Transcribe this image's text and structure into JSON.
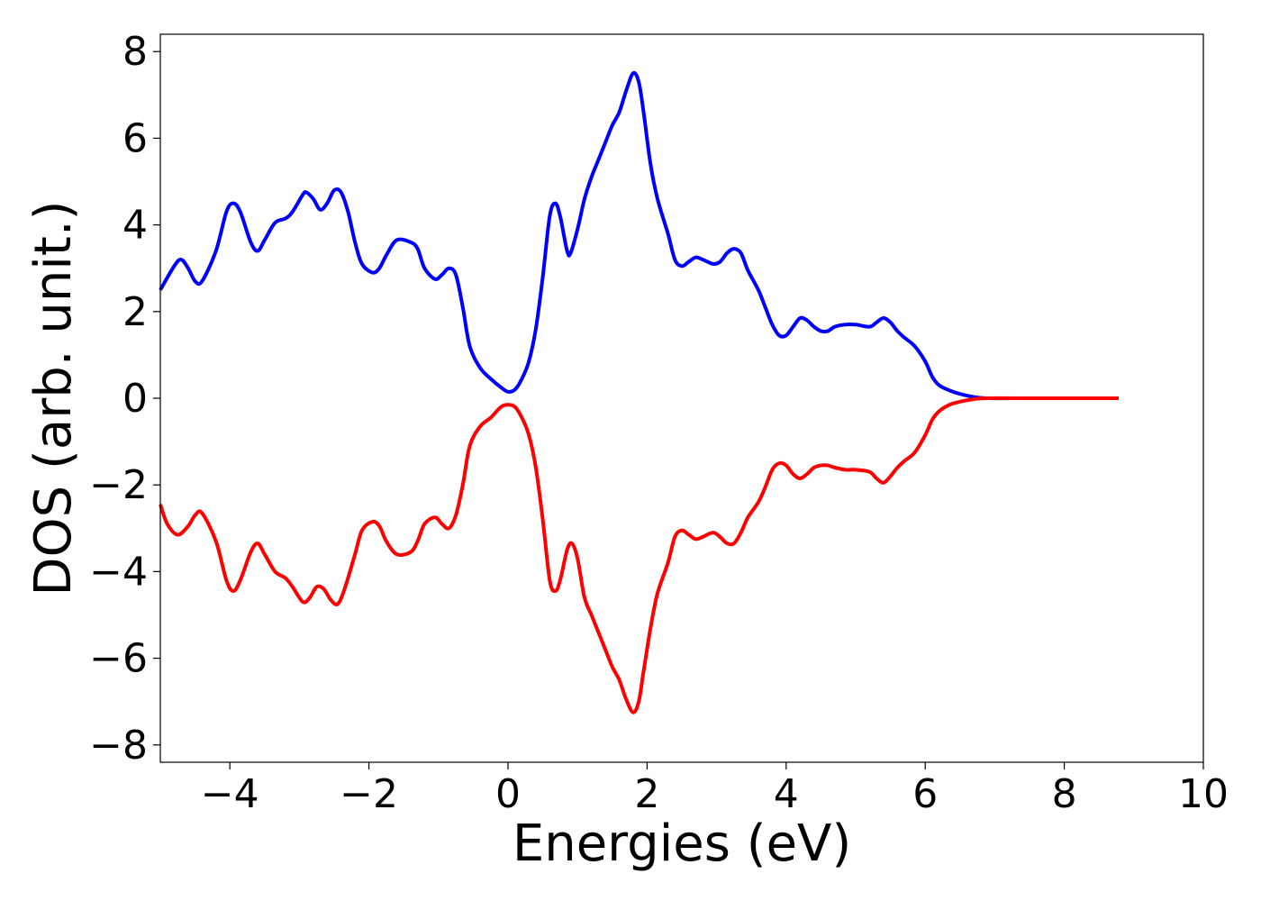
{
  "chart_data": {
    "type": "line",
    "title": "",
    "xlabel": "Energies (eV)",
    "ylabel": "DOS (arb. unit.)",
    "xlim": [
      -5,
      10
    ],
    "ylim": [
      -8.4,
      8.4
    ],
    "x_ticks": [
      -4,
      -2,
      0,
      2,
      4,
      6,
      8,
      10
    ],
    "y_ticks": [
      -8,
      -6,
      -4,
      -2,
      0,
      2,
      4,
      6,
      8
    ],
    "x_tick_labels": [
      "−4",
      "−2",
      "0",
      "2",
      "4",
      "6",
      "8",
      "10"
    ],
    "y_tick_labels": [
      "−8",
      "−6",
      "−4",
      "−2",
      "0",
      "2",
      "4",
      "6",
      "8"
    ],
    "grid": false,
    "legend": "none",
    "series": [
      {
        "color": "#0000ff",
        "points": [
          [
            -5.0,
            2.5
          ],
          [
            -4.8,
            3.05
          ],
          [
            -4.7,
            3.2
          ],
          [
            -4.6,
            3.0
          ],
          [
            -4.5,
            2.7
          ],
          [
            -4.4,
            2.7
          ],
          [
            -4.2,
            3.4
          ],
          [
            -4.05,
            4.3
          ],
          [
            -3.95,
            4.5
          ],
          [
            -3.85,
            4.3
          ],
          [
            -3.7,
            3.6
          ],
          [
            -3.6,
            3.4
          ],
          [
            -3.5,
            3.65
          ],
          [
            -3.35,
            4.05
          ],
          [
            -3.2,
            4.15
          ],
          [
            -3.1,
            4.3
          ],
          [
            -2.95,
            4.7
          ],
          [
            -2.9,
            4.75
          ],
          [
            -2.8,
            4.6
          ],
          [
            -2.7,
            4.35
          ],
          [
            -2.6,
            4.5
          ],
          [
            -2.5,
            4.8
          ],
          [
            -2.4,
            4.75
          ],
          [
            -2.3,
            4.3
          ],
          [
            -2.2,
            3.6
          ],
          [
            -2.1,
            3.1
          ],
          [
            -1.95,
            2.9
          ],
          [
            -1.85,
            3.0
          ],
          [
            -1.75,
            3.3
          ],
          [
            -1.6,
            3.65
          ],
          [
            -1.4,
            3.6
          ],
          [
            -1.3,
            3.45
          ],
          [
            -1.2,
            3.0
          ],
          [
            -1.05,
            2.75
          ],
          [
            -0.95,
            2.85
          ],
          [
            -0.85,
            3.0
          ],
          [
            -0.75,
            2.85
          ],
          [
            -0.65,
            2.1
          ],
          [
            -0.55,
            1.2
          ],
          [
            -0.4,
            0.7
          ],
          [
            -0.25,
            0.45
          ],
          [
            -0.1,
            0.25
          ],
          [
            0.0,
            0.15
          ],
          [
            0.1,
            0.2
          ],
          [
            0.2,
            0.45
          ],
          [
            0.3,
            0.85
          ],
          [
            0.4,
            1.6
          ],
          [
            0.5,
            2.8
          ],
          [
            0.6,
            4.2
          ],
          [
            0.68,
            4.5
          ],
          [
            0.75,
            4.2
          ],
          [
            0.85,
            3.4
          ],
          [
            0.9,
            3.35
          ],
          [
            1.0,
            3.9
          ],
          [
            1.1,
            4.6
          ],
          [
            1.2,
            5.1
          ],
          [
            1.3,
            5.5
          ],
          [
            1.4,
            5.9
          ],
          [
            1.5,
            6.3
          ],
          [
            1.6,
            6.6
          ],
          [
            1.7,
            7.1
          ],
          [
            1.8,
            7.5
          ],
          [
            1.88,
            7.3
          ],
          [
            1.95,
            6.6
          ],
          [
            2.05,
            5.4
          ],
          [
            2.15,
            4.6
          ],
          [
            2.3,
            3.8
          ],
          [
            2.4,
            3.2
          ],
          [
            2.5,
            3.05
          ],
          [
            2.6,
            3.15
          ],
          [
            2.7,
            3.25
          ],
          [
            2.8,
            3.2
          ],
          [
            2.95,
            3.1
          ],
          [
            3.05,
            3.15
          ],
          [
            3.15,
            3.35
          ],
          [
            3.25,
            3.45
          ],
          [
            3.35,
            3.35
          ],
          [
            3.45,
            2.95
          ],
          [
            3.6,
            2.5
          ],
          [
            3.7,
            2.1
          ],
          [
            3.8,
            1.7
          ],
          [
            3.9,
            1.45
          ],
          [
            4.0,
            1.45
          ],
          [
            4.1,
            1.65
          ],
          [
            4.2,
            1.85
          ],
          [
            4.3,
            1.8
          ],
          [
            4.4,
            1.65
          ],
          [
            4.5,
            1.55
          ],
          [
            4.6,
            1.55
          ],
          [
            4.7,
            1.65
          ],
          [
            4.85,
            1.7
          ],
          [
            5.0,
            1.7
          ],
          [
            5.2,
            1.65
          ],
          [
            5.3,
            1.75
          ],
          [
            5.4,
            1.85
          ],
          [
            5.5,
            1.75
          ],
          [
            5.6,
            1.55
          ],
          [
            5.7,
            1.4
          ],
          [
            5.85,
            1.2
          ],
          [
            6.0,
            0.85
          ],
          [
            6.1,
            0.5
          ],
          [
            6.2,
            0.3
          ],
          [
            6.35,
            0.18
          ],
          [
            6.5,
            0.1
          ],
          [
            6.7,
            0.03
          ],
          [
            6.9,
            0.0
          ],
          [
            7.5,
            0.0
          ],
          [
            8.0,
            0.0
          ],
          [
            8.78,
            0.0
          ]
        ]
      },
      {
        "color": "#ff0000",
        "points": [
          [
            -5.0,
            -2.45
          ],
          [
            -4.9,
            -2.9
          ],
          [
            -4.75,
            -3.15
          ],
          [
            -4.6,
            -2.95
          ],
          [
            -4.5,
            -2.7
          ],
          [
            -4.4,
            -2.65
          ],
          [
            -4.2,
            -3.3
          ],
          [
            -4.05,
            -4.2
          ],
          [
            -3.95,
            -4.45
          ],
          [
            -3.85,
            -4.2
          ],
          [
            -3.7,
            -3.55
          ],
          [
            -3.6,
            -3.35
          ],
          [
            -3.5,
            -3.6
          ],
          [
            -3.35,
            -4.0
          ],
          [
            -3.2,
            -4.15
          ],
          [
            -3.1,
            -4.35
          ],
          [
            -2.95,
            -4.7
          ],
          [
            -2.85,
            -4.6
          ],
          [
            -2.75,
            -4.35
          ],
          [
            -2.65,
            -4.4
          ],
          [
            -2.55,
            -4.65
          ],
          [
            -2.45,
            -4.75
          ],
          [
            -2.35,
            -4.4
          ],
          [
            -2.2,
            -3.6
          ],
          [
            -2.1,
            -3.05
          ],
          [
            -1.95,
            -2.85
          ],
          [
            -1.85,
            -2.95
          ],
          [
            -1.75,
            -3.3
          ],
          [
            -1.6,
            -3.6
          ],
          [
            -1.4,
            -3.55
          ],
          [
            -1.3,
            -3.3
          ],
          [
            -1.2,
            -2.9
          ],
          [
            -1.05,
            -2.75
          ],
          [
            -0.95,
            -2.9
          ],
          [
            -0.85,
            -3.0
          ],
          [
            -0.75,
            -2.7
          ],
          [
            -0.65,
            -2.0
          ],
          [
            -0.55,
            -1.1
          ],
          [
            -0.4,
            -0.65
          ],
          [
            -0.25,
            -0.45
          ],
          [
            -0.1,
            -0.2
          ],
          [
            0.0,
            -0.15
          ],
          [
            0.1,
            -0.2
          ],
          [
            0.2,
            -0.45
          ],
          [
            0.3,
            -0.85
          ],
          [
            0.4,
            -1.6
          ],
          [
            0.5,
            -2.8
          ],
          [
            0.6,
            -4.2
          ],
          [
            0.68,
            -4.45
          ],
          [
            0.75,
            -4.2
          ],
          [
            0.85,
            -3.5
          ],
          [
            0.92,
            -3.35
          ],
          [
            1.0,
            -3.7
          ],
          [
            1.1,
            -4.6
          ],
          [
            1.2,
            -5.0
          ],
          [
            1.3,
            -5.4
          ],
          [
            1.4,
            -5.8
          ],
          [
            1.5,
            -6.2
          ],
          [
            1.6,
            -6.5
          ],
          [
            1.7,
            -6.95
          ],
          [
            1.8,
            -7.25
          ],
          [
            1.88,
            -7.0
          ],
          [
            1.95,
            -6.3
          ],
          [
            2.05,
            -5.3
          ],
          [
            2.15,
            -4.5
          ],
          [
            2.3,
            -3.8
          ],
          [
            2.4,
            -3.2
          ],
          [
            2.5,
            -3.05
          ],
          [
            2.6,
            -3.15
          ],
          [
            2.7,
            -3.25
          ],
          [
            2.8,
            -3.2
          ],
          [
            2.95,
            -3.1
          ],
          [
            3.05,
            -3.2
          ],
          [
            3.15,
            -3.35
          ],
          [
            3.25,
            -3.35
          ],
          [
            3.35,
            -3.1
          ],
          [
            3.45,
            -2.75
          ],
          [
            3.6,
            -2.4
          ],
          [
            3.7,
            -2.05
          ],
          [
            3.8,
            -1.65
          ],
          [
            3.9,
            -1.5
          ],
          [
            4.0,
            -1.55
          ],
          [
            4.1,
            -1.75
          ],
          [
            4.2,
            -1.85
          ],
          [
            4.3,
            -1.75
          ],
          [
            4.4,
            -1.6
          ],
          [
            4.5,
            -1.55
          ],
          [
            4.6,
            -1.55
          ],
          [
            4.7,
            -1.6
          ],
          [
            4.85,
            -1.65
          ],
          [
            5.0,
            -1.65
          ],
          [
            5.2,
            -1.7
          ],
          [
            5.3,
            -1.85
          ],
          [
            5.4,
            -1.95
          ],
          [
            5.5,
            -1.8
          ],
          [
            5.6,
            -1.6
          ],
          [
            5.7,
            -1.45
          ],
          [
            5.85,
            -1.25
          ],
          [
            6.0,
            -0.85
          ],
          [
            6.1,
            -0.5
          ],
          [
            6.2,
            -0.3
          ],
          [
            6.35,
            -0.15
          ],
          [
            6.5,
            -0.08
          ],
          [
            6.7,
            -0.02
          ],
          [
            6.9,
            0.0
          ],
          [
            7.5,
            0.0
          ],
          [
            8.0,
            0.0
          ],
          [
            8.78,
            0.0
          ]
        ]
      }
    ]
  }
}
